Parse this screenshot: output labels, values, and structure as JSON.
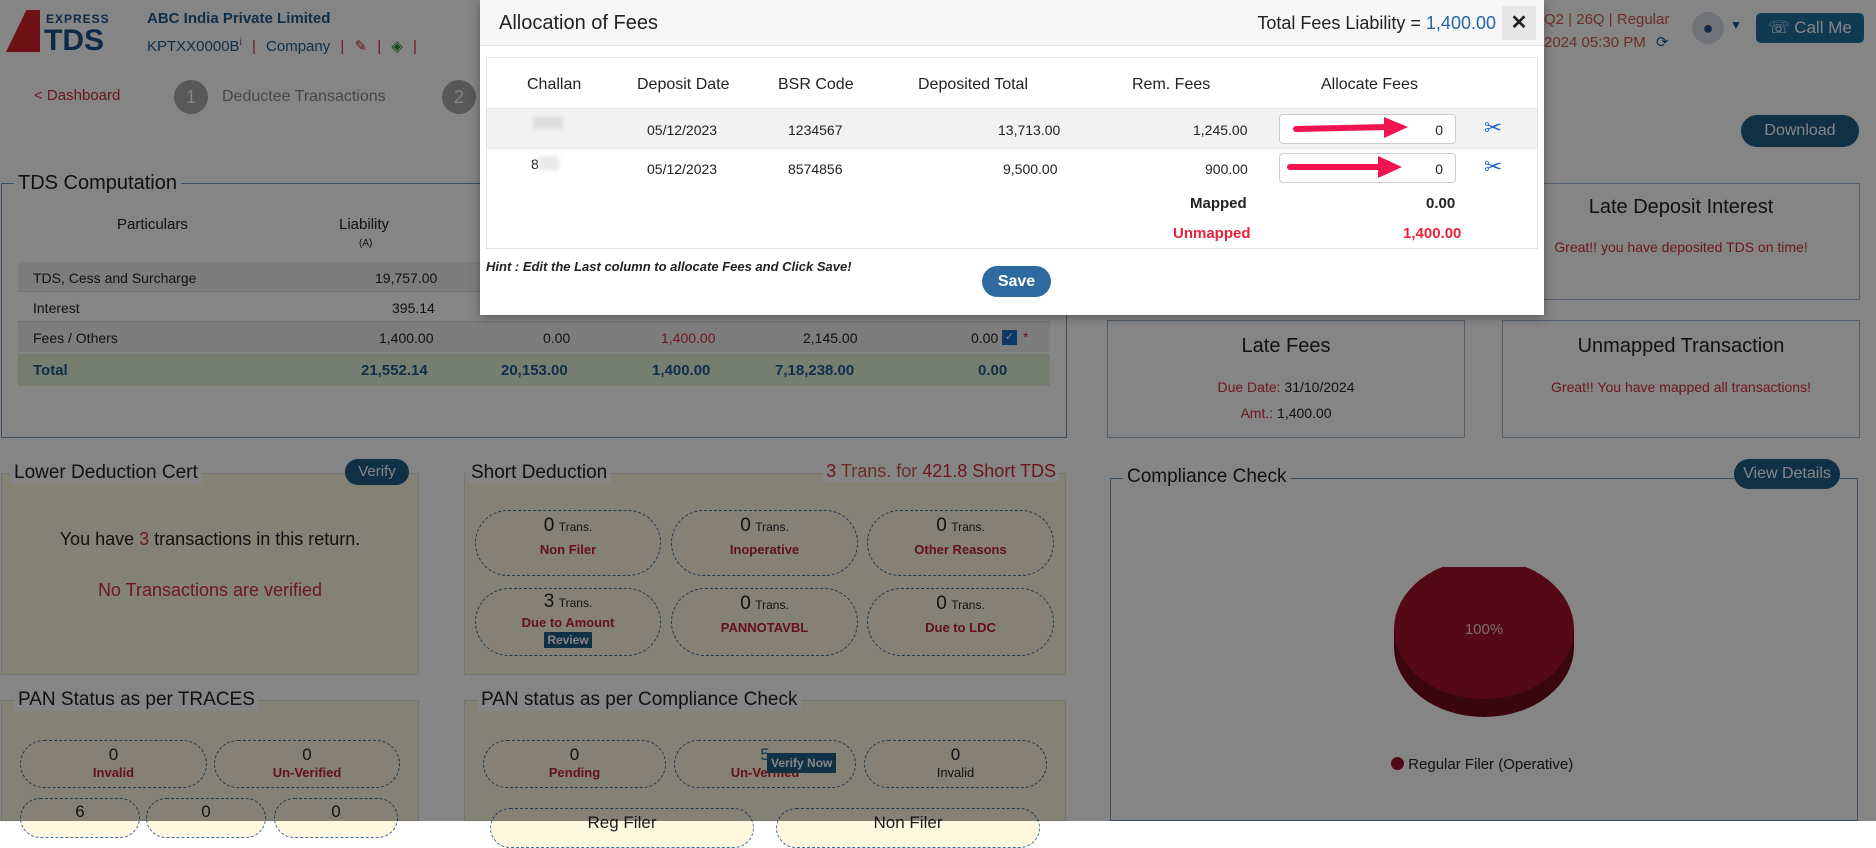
{
  "header": {
    "logo_top": "EXPRESS",
    "logo_bottom": "TDS",
    "company_name": "ABC India Private Limited",
    "tan": "KPTXX0000B",
    "tan_info": "i",
    "company_link": "Company",
    "separator": "|",
    "period": "Q2 | 26Q | Regular",
    "datetime": "2024 05:30 PM",
    "call_me": "Call Me"
  },
  "steps": {
    "dashboard_link": "< Dashboard",
    "step1_num": "1",
    "step1_label": "Deductee Transactions",
    "step2_num": "2",
    "download": "Download"
  },
  "tds": {
    "title": "TDS Computation",
    "col_particulars": "Particulars",
    "col_liability": "Liability",
    "col_liability_sub": "(A)",
    "rows": [
      {
        "name": "TDS, Cess and Surcharge",
        "liability": "19,757.00"
      },
      {
        "name": "Interest",
        "liability": "395.14"
      },
      {
        "name": "Fees / Others",
        "liability": "1,400.00",
        "c2": "0.00",
        "c3": "1,400.00",
        "c4": "2,145.00",
        "c5": "0.00",
        "star": "*"
      }
    ],
    "total": {
      "name": "Total",
      "liability": "21,552.14",
      "c2": "20,153.00",
      "c3": "1,400.00",
      "c4": "7,18,238.00",
      "c5": "0.00"
    }
  },
  "late_interest": {
    "title": "Late Deposit Interest",
    "msg": "Great!! you have deposited TDS on time!"
  },
  "late_fees": {
    "title": "Late Fees",
    "due_label": "Due Date:",
    "due": "31/10/2024",
    "amt_label": "Amt.:",
    "amt": "1,400.00"
  },
  "unmapped_tx": {
    "title": "Unmapped Transaction",
    "msg": "Great!! You have mapped all transactions!"
  },
  "ldc": {
    "title": "Lower Deduction Cert",
    "verify": "Verify",
    "msg_pre": "You have",
    "count": "3",
    "msg_post": "transactions in this return.",
    "none": "No Transactions are verified"
  },
  "short": {
    "title": "Short Deduction",
    "summary_count": "3",
    "summary_mid": "Trans. for",
    "summary_amt": "421.8 Short TDS",
    "trans": "Trans.",
    "items": [
      {
        "count": "0",
        "label": "Non Filer"
      },
      {
        "count": "0",
        "label": "Inoperative"
      },
      {
        "count": "0",
        "label": "Other Reasons"
      },
      {
        "count": "3",
        "label": "Due to Amount",
        "badge": "Review"
      },
      {
        "count": "0",
        "label": "PANNOTAVBL"
      },
      {
        "count": "0",
        "label": "Due to LDC"
      }
    ]
  },
  "compliance": {
    "title": "Compliance Check",
    "view": "View Details",
    "pie_label": "100%",
    "legend": "Regular Filer (Operative)",
    "pie_color": "#a3102a"
  },
  "pan_traces": {
    "title": "PAN Status as per TRACES",
    "items": [
      {
        "count": "0",
        "label": "Invalid"
      },
      {
        "count": "0",
        "label": "Un-Verified"
      }
    ],
    "row2": [
      "6",
      "0",
      "0"
    ]
  },
  "pan_cc": {
    "title": "PAN status as per Compliance Check",
    "items": [
      {
        "count": "0",
        "label": "Pending"
      },
      {
        "count": "5",
        "label": "Un-Verified",
        "badge": "Verify Now"
      },
      {
        "count": "0",
        "label": "Invalid"
      }
    ],
    "row2": [
      "Reg Filer",
      "Non Filer"
    ]
  },
  "modal": {
    "title": "Allocation of Fees",
    "liability_label": "Total Fees Liability =",
    "liability_value": "1,400.00",
    "close": "✕",
    "columns": [
      "Challan",
      "Deposit Date",
      "BSR Code",
      "Deposited Total",
      "Rem. Fees",
      "Allocate Fees"
    ],
    "rows": [
      {
        "challan": "",
        "date": "05/12/2023",
        "bsr": "1234567",
        "deposited": "13,713.00",
        "rem": "1,245.00",
        "allocate": "0"
      },
      {
        "challan": "8",
        "date": "05/12/2023",
        "bsr": "8574856",
        "deposited": "9,500.00",
        "rem": "900.00",
        "allocate": "0"
      }
    ],
    "mapped_label": "Mapped",
    "mapped_value": "0.00",
    "unmapped_label": "Unmapped",
    "unmapped_value": "1,400.00",
    "hint": "Hint : Edit the Last column to allocate Fees and Click Save!",
    "save": "Save",
    "arrow_color": "#f0134f"
  }
}
